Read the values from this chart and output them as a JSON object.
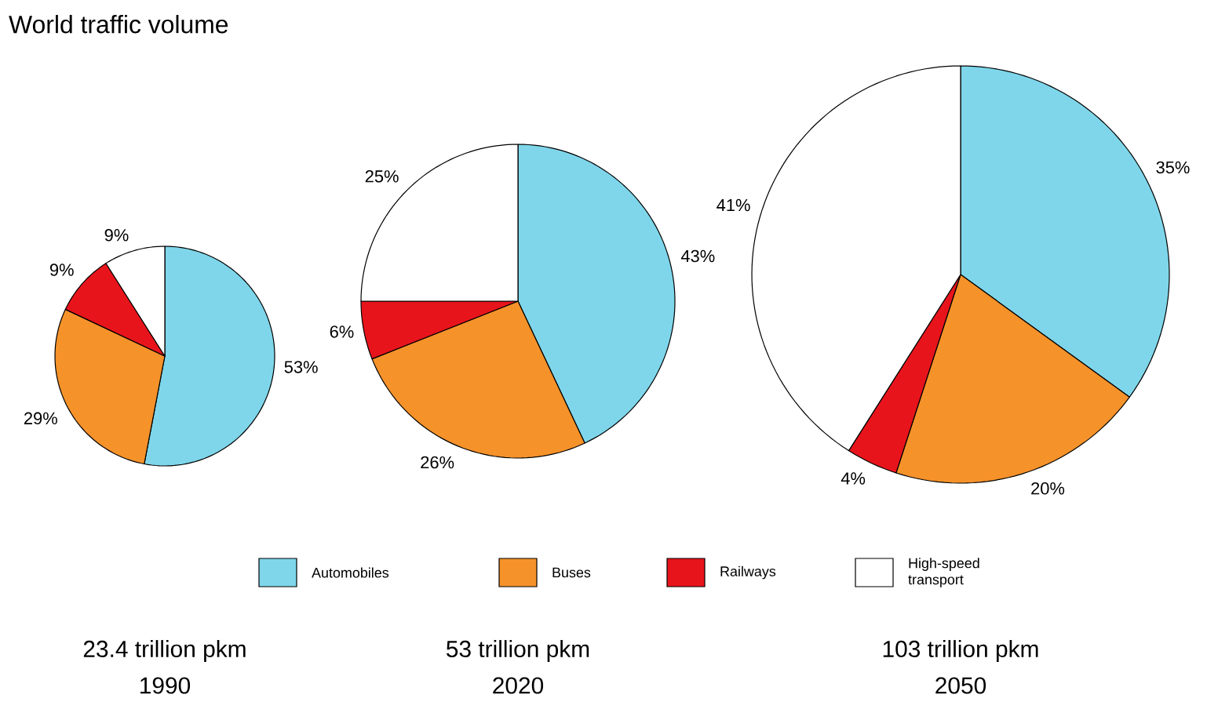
{
  "chart_data": [
    {
      "type": "pie",
      "title": "World traffic volume",
      "categories": [
        null,
        null,
        null,
        null
      ],
      "values": [
        53,
        29,
        9,
        9
      ],
      "value_labels": [
        "53%",
        "29%",
        "9%",
        "9%"
      ],
      "colors": [
        "#7fd6ea",
        "#f5922a",
        "#e8141c",
        "#ffffff"
      ],
      "annotations": [
        "23.4 trillion pkm",
        "1990"
      ]
    },
    {
      "type": "pie",
      "categories": [
        "Automobiles",
        "Buses",
        "Railways",
        "High-speed transport"
      ],
      "values": [
        43,
        26,
        6,
        25
      ],
      "value_labels": [
        "43%",
        "26%",
        "6%",
        "25%"
      ],
      "colors": [
        "#7fd6ea",
        "#f5922a",
        "#e8141c",
        "#ffffff"
      ],
      "legend": "bottom",
      "annotations": [
        "53 trillion pkm",
        "2020"
      ]
    },
    {
      "type": "pie",
      "categories": [
        null,
        null,
        null,
        null
      ],
      "values": [
        35,
        20,
        4,
        41
      ],
      "value_labels": [
        "35%",
        "20%",
        "4%",
        "41%"
      ],
      "colors": [
        "#7fd6ea",
        "#f5922a",
        "#e8141c",
        "#ffffff"
      ],
      "annotations": [
        "103 trillion pkm",
        "2050"
      ]
    }
  ]
}
